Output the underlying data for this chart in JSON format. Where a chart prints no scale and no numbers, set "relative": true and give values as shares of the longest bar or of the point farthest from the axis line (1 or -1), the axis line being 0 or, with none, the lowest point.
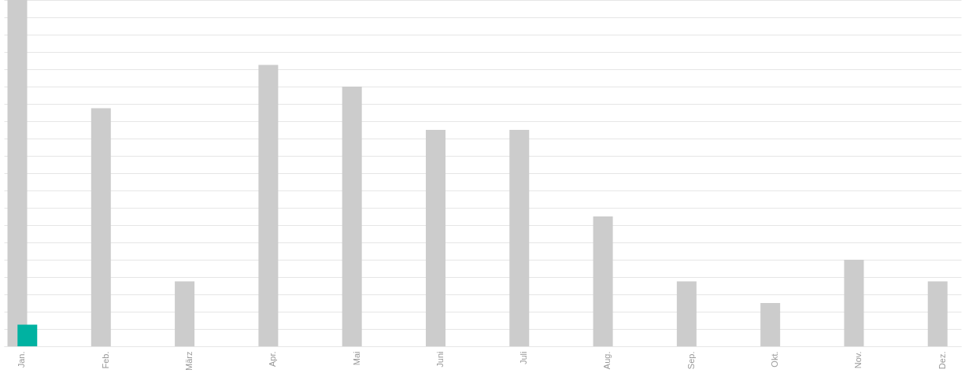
{
  "chart_data": {
    "type": "bar",
    "relative": true,
    "grid": "y",
    "legend": false,
    "categories": [
      "Jan.",
      "Feb.",
      "März",
      "Apr.",
      "Mai",
      "Juni",
      "Juli",
      "Aug.",
      "Sep.",
      "Okt.",
      "Nov.",
      "Dez."
    ],
    "series": [
      {
        "color": "#cccccc",
        "values": [
          1,
          0.6875,
          0.1875,
          0.8125,
          0.75,
          0.625,
          0.625,
          0.375,
          0.1875,
          0.125,
          0.25,
          0.1875
        ]
      },
      {
        "color": "#00b2a1",
        "values": [
          0.0625,
          null,
          null,
          null,
          null,
          null,
          null,
          null,
          null,
          null,
          null,
          null
        ]
      }
    ]
  }
}
